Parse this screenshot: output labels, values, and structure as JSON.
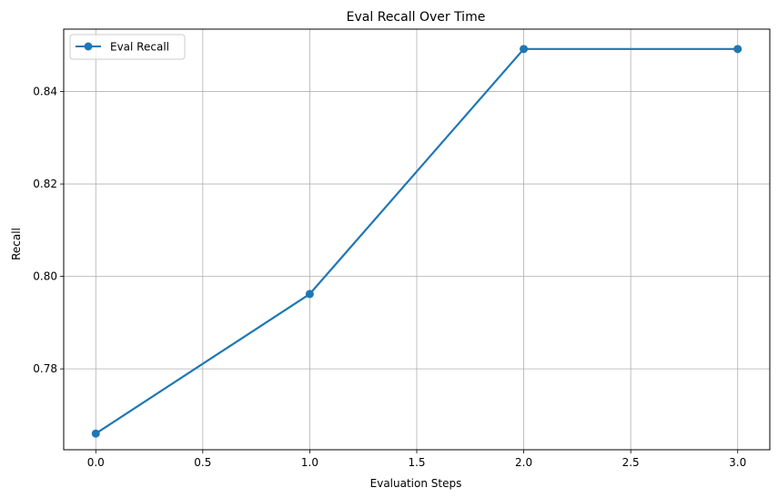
{
  "chart_data": {
    "type": "line",
    "title": "Eval Recall Over Time",
    "xlabel": "Evaluation Steps",
    "ylabel": "Recall",
    "xlim": [
      -0.15,
      3.15
    ],
    "ylim": [
      0.7625,
      0.8535
    ],
    "xticks": [
      0.0,
      0.5,
      1.0,
      1.5,
      2.0,
      2.5,
      3.0
    ],
    "xtick_labels": [
      "0.0",
      "0.5",
      "1.0",
      "1.5",
      "2.0",
      "2.5",
      "3.0"
    ],
    "yticks": [
      0.78,
      0.8,
      0.82,
      0.84
    ],
    "ytick_labels": [
      "0.78",
      "0.80",
      "0.82",
      "0.84"
    ],
    "grid": true,
    "legend_position": "top-left",
    "series": [
      {
        "name": "Eval Recall",
        "color": "#1f77b4",
        "marker": "circle",
        "x": [
          0,
          1,
          2,
          3
        ],
        "y": [
          0.766,
          0.7962,
          0.8492,
          0.8492
        ]
      }
    ]
  }
}
